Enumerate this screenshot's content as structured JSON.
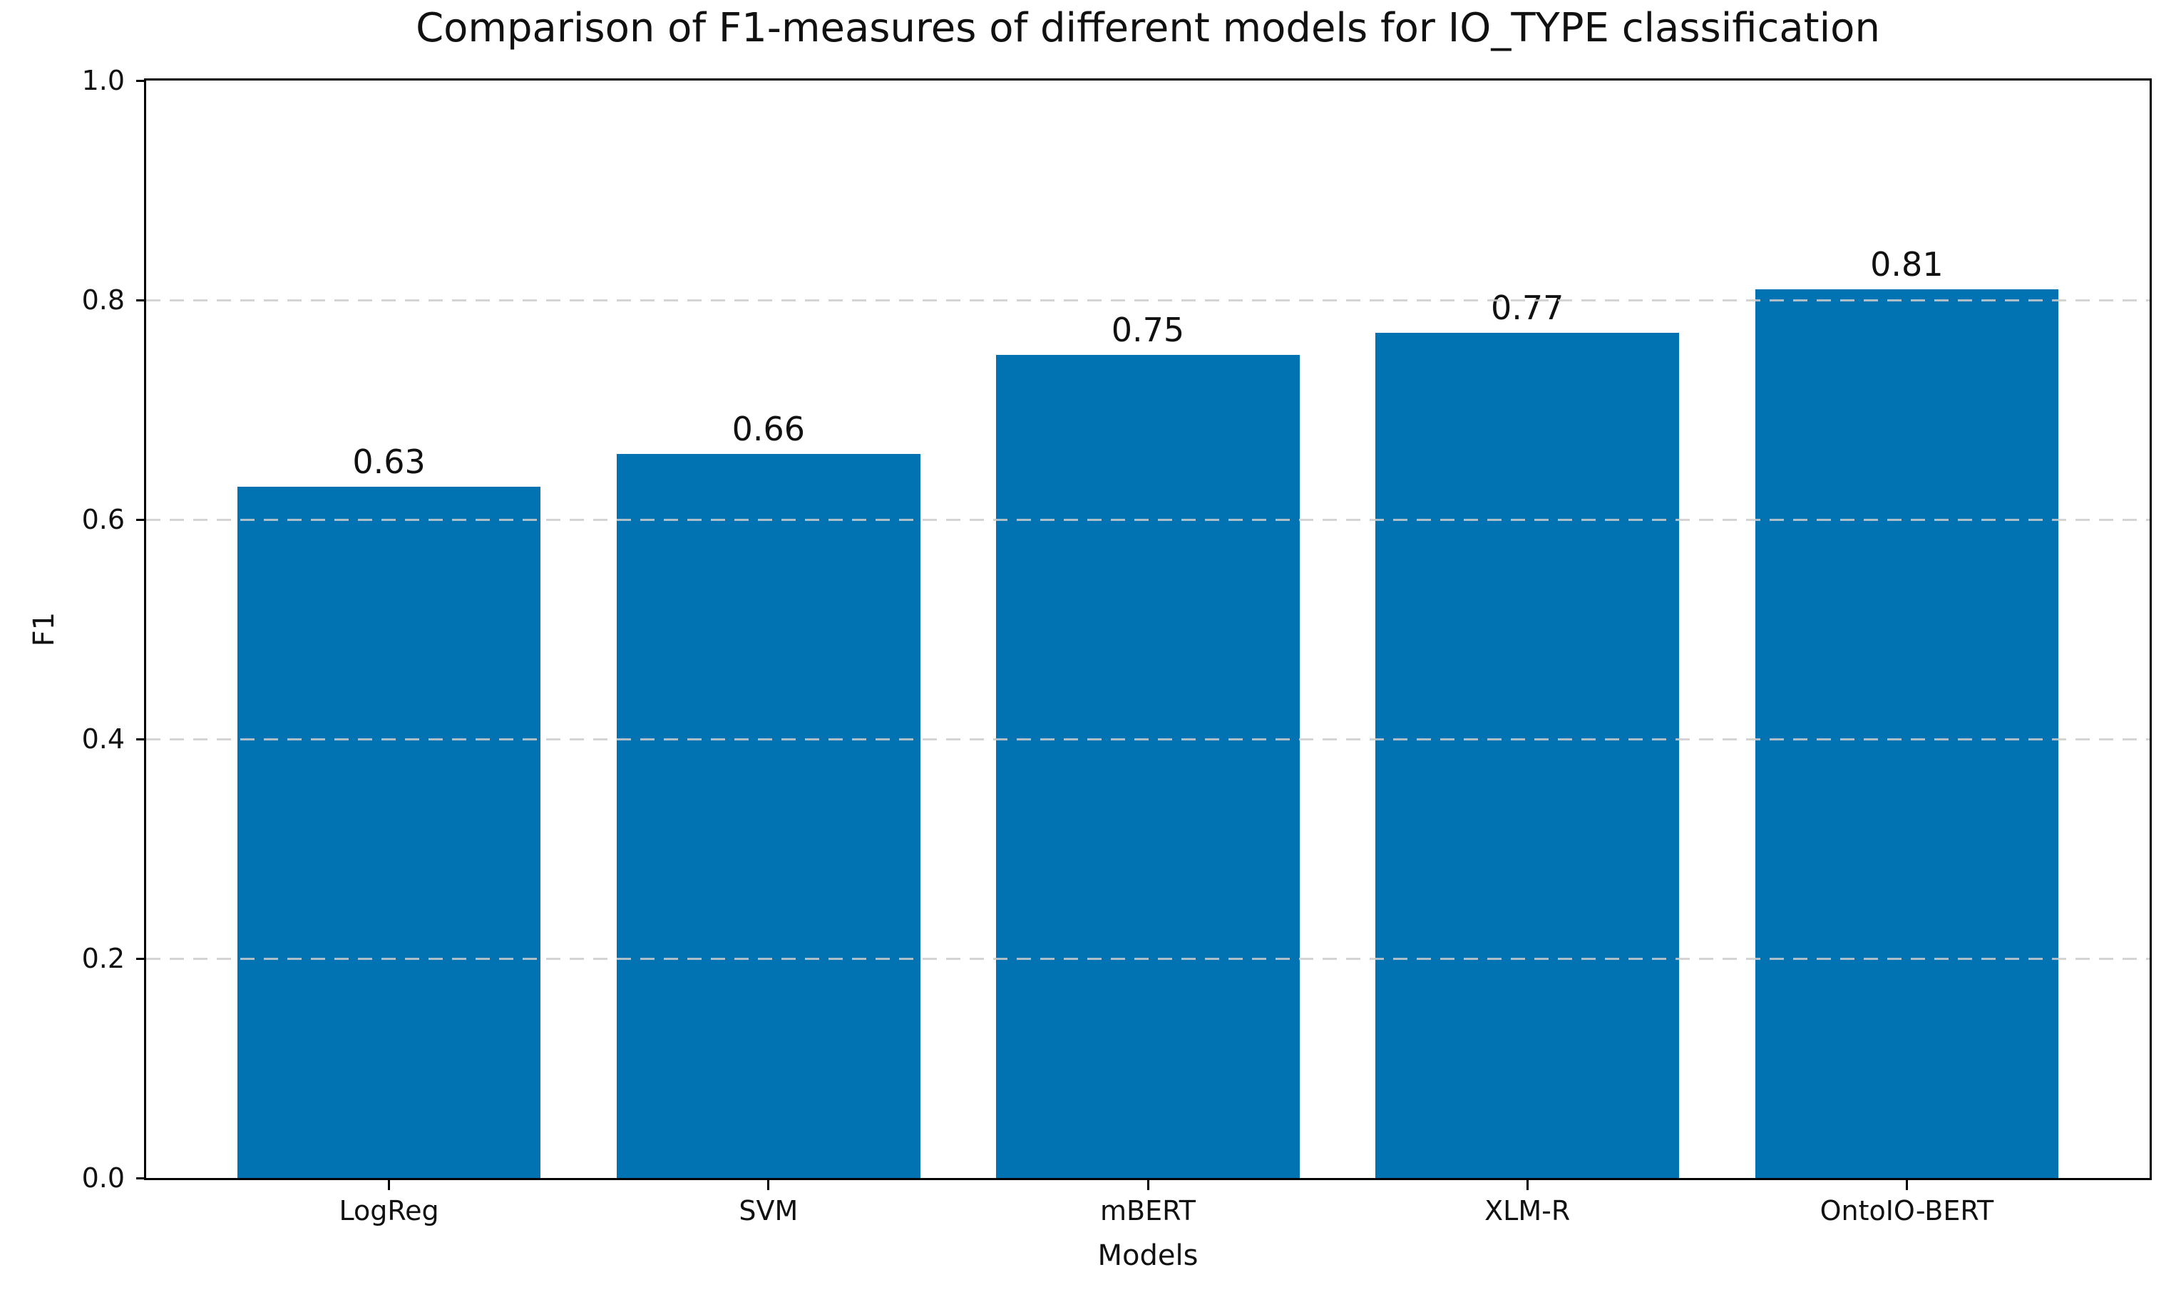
{
  "chart_data": {
    "type": "bar",
    "title": "Comparison of F1-measures of different models for IO_TYPE classification",
    "xlabel": "Models",
    "ylabel": "F1",
    "categories": [
      "LogReg",
      "SVM",
      "mBERT",
      "XLM-R",
      "OntoIO-BERT"
    ],
    "values": [
      0.63,
      0.66,
      0.75,
      0.77,
      0.81
    ],
    "bar_labels": [
      "0.63",
      "0.66",
      "0.75",
      "0.77",
      "0.81"
    ],
    "ylim": [
      0.0,
      1.0
    ],
    "yticks": [
      0.0,
      0.2,
      0.4,
      0.6,
      0.8,
      1.0
    ],
    "ytick_labels": [
      "0.0",
      "0.2",
      "0.4",
      "0.6",
      "0.8",
      "1.0"
    ],
    "grid": "horizontal-dashed",
    "grid_over_bars": true,
    "legend": "none",
    "bar_color": "#0173b2",
    "grid_color": "#cccccc",
    "spine_color": "#000000",
    "text_color": "#111111"
  }
}
